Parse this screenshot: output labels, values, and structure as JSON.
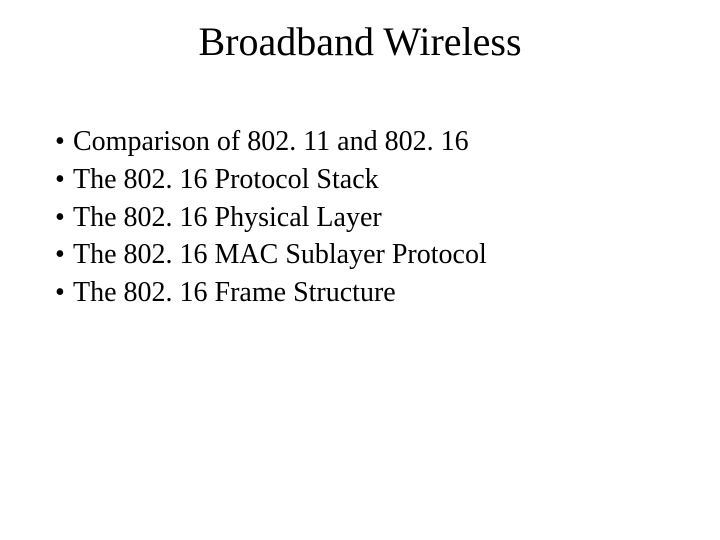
{
  "background_color": "#ffffff",
  "text_color": "#000000",
  "font_family": "Times New Roman",
  "title": {
    "text": "Broadband Wireless",
    "fontsize": 40,
    "align": "center"
  },
  "bullets": {
    "fontsize": 28,
    "marker": "•",
    "items": [
      "Comparison of 802. 11 and 802. 16",
      "The 802. 16 Protocol Stack",
      "The 802. 16 Physical Layer",
      "The 802. 16 MAC Sublayer Protocol",
      "The 802. 16 Frame Structure"
    ]
  }
}
